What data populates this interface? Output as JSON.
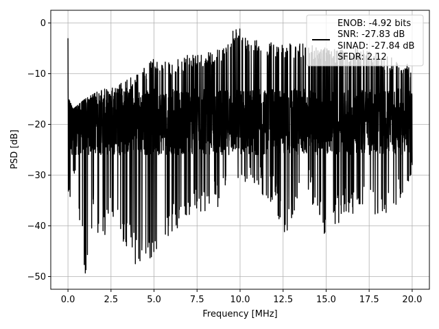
{
  "chart_data": {
    "type": "line",
    "title": "",
    "xlabel": "Frequency [MHz]",
    "ylabel": "PSD [dB]",
    "xlim": [
      -1.0,
      21.0
    ],
    "ylim": [
      -52.5,
      2.5
    ],
    "xticks": [
      0.0,
      2.5,
      5.0,
      7.5,
      10.0,
      12.5,
      15.0,
      17.5,
      20.0
    ],
    "xtick_labels": [
      "0.0",
      "2.5",
      "5.0",
      "7.5",
      "10.0",
      "12.5",
      "15.0",
      "17.5",
      "20.0"
    ],
    "yticks": [
      0,
      -10,
      -20,
      -30,
      -40,
      -50
    ],
    "ytick_labels": [
      "0",
      "−10",
      "−20",
      "−30",
      "−40",
      "−50"
    ],
    "grid": true,
    "legend_placement": "upper-right",
    "series": [
      {
        "color": "#000000",
        "envelope_top": {
          "x": [
            0.0,
            0.05,
            0.3,
            1.0,
            2.0,
            3.0,
            4.0,
            5.0,
            6.0,
            7.0,
            8.0,
            9.0,
            9.8,
            10.5,
            12.0,
            13.0,
            14.0,
            15.0,
            16.0,
            17.0,
            18.0,
            19.0,
            20.0
          ],
          "y": [
            -3,
            -15,
            -17,
            -15,
            -13,
            -12,
            -10,
            -7,
            -8,
            -6,
            -6,
            -5,
            0,
            -3,
            -4,
            -4,
            -4,
            -5,
            -5,
            -5,
            -6,
            -7,
            -8
          ]
        },
        "envelope_bottom": {
          "x": [
            0.0,
            0.3,
            0.5,
            1.0,
            1.5,
            2.0,
            2.5,
            3.0,
            4.0,
            5.0,
            6.0,
            7.5,
            8.5,
            10.0,
            11.0,
            12.0,
            12.5,
            14.0,
            15.0,
            16.0,
            17.5,
            18.5,
            20.0
          ],
          "y": [
            -39,
            -32,
            -35,
            -50,
            -38,
            -45,
            -37,
            -42,
            -48,
            -46,
            -42,
            -38,
            -37,
            -35,
            -34,
            -36,
            -43,
            -34,
            -44,
            -38,
            -37,
            -39,
            -31
          ]
        },
        "core_band": {
          "upper": -13,
          "lower": -26
        }
      }
    ],
    "legend_entries": [
      {
        "text": "ENOB: -4.92 bits",
        "has_line": true
      },
      {
        "text": "SNR: -27.83 dB",
        "has_line": false
      },
      {
        "text": "SINAD: -27.84 dB",
        "has_line": false
      },
      {
        "text": "SFDR: 2.12",
        "has_line": false
      }
    ]
  }
}
